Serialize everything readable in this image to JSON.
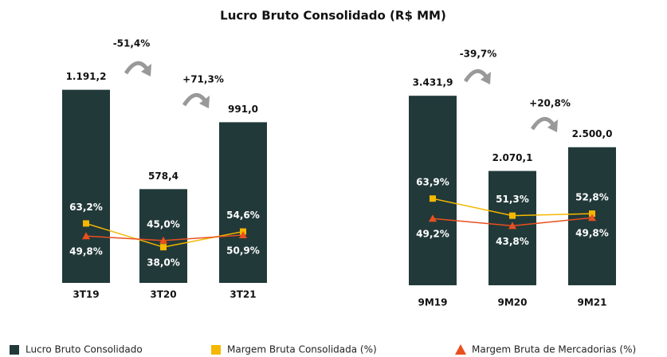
{
  "title": "Lucro Bruto Consolidado (R$ MM)",
  "chart_data": [
    {
      "type": "bar",
      "categories": [
        "3T19",
        "3T20",
        "3T21"
      ],
      "ylim": [
        0,
        1450
      ],
      "y2lim": [
        0,
        250
      ],
      "annotations": [
        "-51,4%",
        "+71,3%"
      ],
      "series": [
        {
          "name": "Lucro Bruto Consolidado",
          "color": "#22393a",
          "values": [
            1191.2,
            578.4,
            991.0
          ],
          "value_labels": [
            "1.191,2",
            "578,4",
            "991,0"
          ]
        },
        {
          "name": "Margem Bruta Consolidada (%)",
          "color": "#f5b800",
          "axis": "y2",
          "values": [
            63.2,
            38.0,
            54.6
          ],
          "value_labels": [
            "63,2%",
            "38,0%",
            "54,6%"
          ]
        },
        {
          "name": "Margem Bruta de Mercadorias (%)",
          "color": "#e8501e",
          "axis": "y2",
          "values": [
            49.8,
            45.0,
            50.9
          ],
          "value_labels": [
            "49,8%",
            "45,0%",
            "50,9%"
          ]
        }
      ]
    },
    {
      "type": "bar",
      "categories": [
        "9M19",
        "9M20",
        "9M21"
      ],
      "ylim": [
        0,
        4300
      ],
      "y2lim": [
        0,
        175
      ],
      "annotations": [
        "-39,7%",
        "+20,8%"
      ],
      "series": [
        {
          "name": "Lucro Bruto Consolidado",
          "color": "#22393a",
          "values": [
            3431.9,
            2070.1,
            2500.0
          ],
          "value_labels": [
            "3.431,9",
            "2.070,1",
            "2.500,0"
          ]
        },
        {
          "name": "Margem Bruta Consolidada (%)",
          "color": "#f5b800",
          "axis": "y2",
          "values": [
            63.9,
            51.3,
            52.8
          ],
          "value_labels": [
            "63,9%",
            "51,3%",
            "52,8%"
          ]
        },
        {
          "name": "Margem Bruta de Mercadorias (%)",
          "color": "#e8501e",
          "axis": "y2",
          "values": [
            49.2,
            43.8,
            49.8
          ],
          "value_labels": [
            "49,2%",
            "43,8%",
            "49,8%"
          ]
        }
      ]
    }
  ]
}
